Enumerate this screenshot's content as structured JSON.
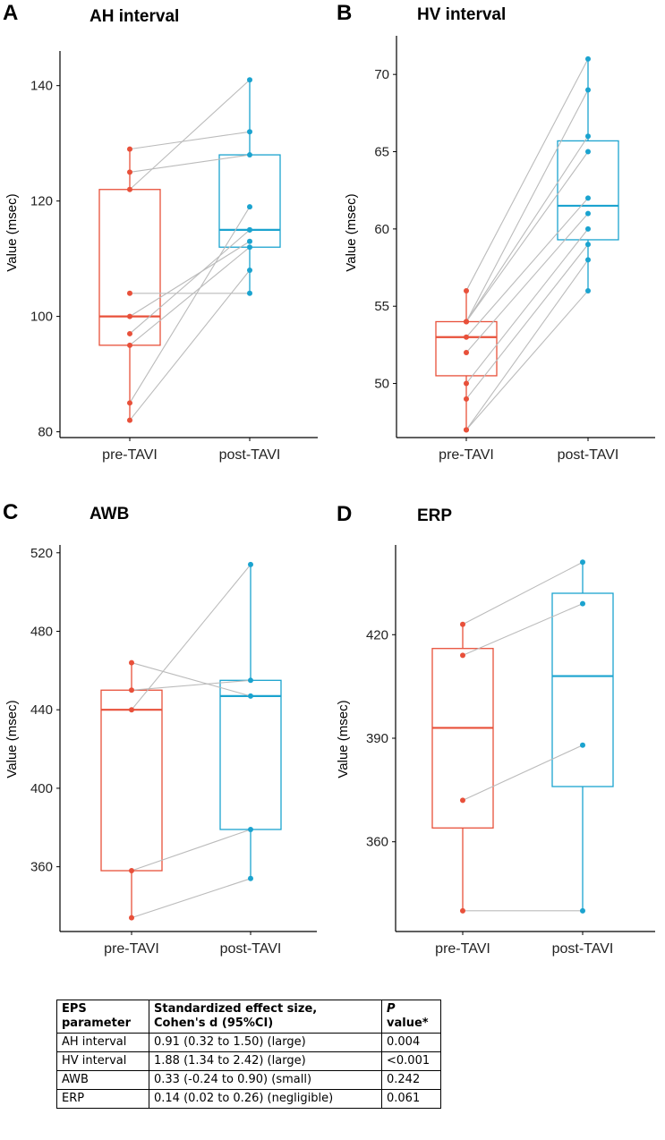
{
  "colors": {
    "pre": "#e8503a",
    "post": "#1ba3cf",
    "link": "#bbbbbb",
    "axis": "#000000"
  },
  "chart_data": [
    {
      "panel": "A",
      "type": "box-paired",
      "title": "AH interval",
      "ylabel": "Value (msec)",
      "categories": [
        "pre-TAVI",
        "post-TAVI"
      ],
      "yticks": [
        80,
        100,
        120,
        140
      ],
      "ylim": [
        79,
        146
      ],
      "box": {
        "pre": [
          95,
          100,
          122
        ],
        "post": [
          112,
          115,
          128
        ]
      },
      "whisker": {
        "pre": [
          82,
          129
        ],
        "post": [
          104,
          141
        ]
      },
      "pairs": [
        [
          129,
          132
        ],
        [
          125,
          128
        ],
        [
          122,
          141
        ],
        [
          104,
          104
        ],
        [
          100,
          113
        ],
        [
          97,
          115
        ],
        [
          95,
          112
        ],
        [
          85,
          119
        ],
        [
          82,
          108
        ]
      ],
      "extra_pre": [],
      "extra_post": [
        115
      ]
    },
    {
      "panel": "B",
      "type": "box-paired",
      "title": "HV interval",
      "ylabel": "Value (msec)",
      "categories": [
        "pre-TAVI",
        "post-TAVI"
      ],
      "yticks": [
        50,
        55,
        60,
        65,
        70
      ],
      "ylim": [
        46.5,
        72.5
      ],
      "box": {
        "pre": [
          50.5,
          53,
          54
        ],
        "post": [
          59.3,
          61.5,
          65.7
        ]
      },
      "whisker": {
        "pre": [
          47,
          56
        ],
        "post": [
          56,
          71
        ]
      },
      "pairs": [
        [
          56,
          71
        ],
        [
          54,
          69
        ],
        [
          54,
          66
        ],
        [
          54,
          65
        ],
        [
          53,
          62
        ],
        [
          52,
          61
        ],
        [
          50,
          60
        ],
        [
          49,
          59
        ],
        [
          47,
          58
        ],
        [
          47,
          56
        ]
      ],
      "extra_pre": [],
      "extra_post": []
    },
    {
      "panel": "C",
      "type": "box-paired",
      "title": "AWB",
      "ylabel": "Value (msec)",
      "categories": [
        "pre-TAVI",
        "post-TAVI"
      ],
      "yticks": [
        360,
        400,
        440,
        480,
        520
      ],
      "ylim": [
        327,
        524
      ],
      "box": {
        "pre": [
          358,
          440,
          450
        ],
        "post": [
          379,
          447,
          455
        ]
      },
      "whisker": {
        "pre": [
          334,
          464
        ],
        "post": [
          354,
          514
        ]
      },
      "pairs": [
        [
          464,
          447
        ],
        [
          450,
          455
        ],
        [
          440,
          514
        ],
        [
          358,
          379
        ],
        [
          334,
          354
        ]
      ],
      "extra_pre": [],
      "extra_post": []
    },
    {
      "panel": "D",
      "type": "box-paired",
      "title": "ERP",
      "ylabel": "Value (msec)",
      "categories": [
        "pre-TAVI",
        "post-TAVI"
      ],
      "yticks": [
        360,
        390,
        420
      ],
      "ylim": [
        334,
        446
      ],
      "box": {
        "pre": [
          364,
          393,
          416
        ],
        "post": [
          376,
          408,
          432
        ]
      },
      "whisker": {
        "pre": [
          340,
          423
        ],
        "post": [
          340,
          441
        ]
      },
      "pairs": [
        [
          423,
          441
        ],
        [
          414,
          429
        ],
        [
          372,
          388
        ],
        [
          340,
          340
        ]
      ],
      "extra_pre": [],
      "extra_post": []
    }
  ],
  "table": {
    "headers": [
      {
        "l1": "EPS",
        "l2": "parameter"
      },
      {
        "l1": "Standardized effect size,",
        "l2": "Cohen's d (95%CI)"
      },
      {
        "l1": "P",
        "l2": "value*"
      }
    ],
    "rows": [
      {
        "param": "AH interval",
        "effect": "0.91 (0.32 to 1.50) (large)",
        "p": "0.004"
      },
      {
        "param": "HV interval",
        "effect": "1.88 (1.34 to 2.42) (large)",
        "p": "<0.001"
      },
      {
        "param": "AWB",
        "effect": "0.33 (-0.24 to 0.90) (small)",
        "p": "0.242"
      },
      {
        "param": "ERP",
        "effect": "0.14 (0.02 to 0.26) (negligible)",
        "p": "0.061"
      }
    ]
  }
}
